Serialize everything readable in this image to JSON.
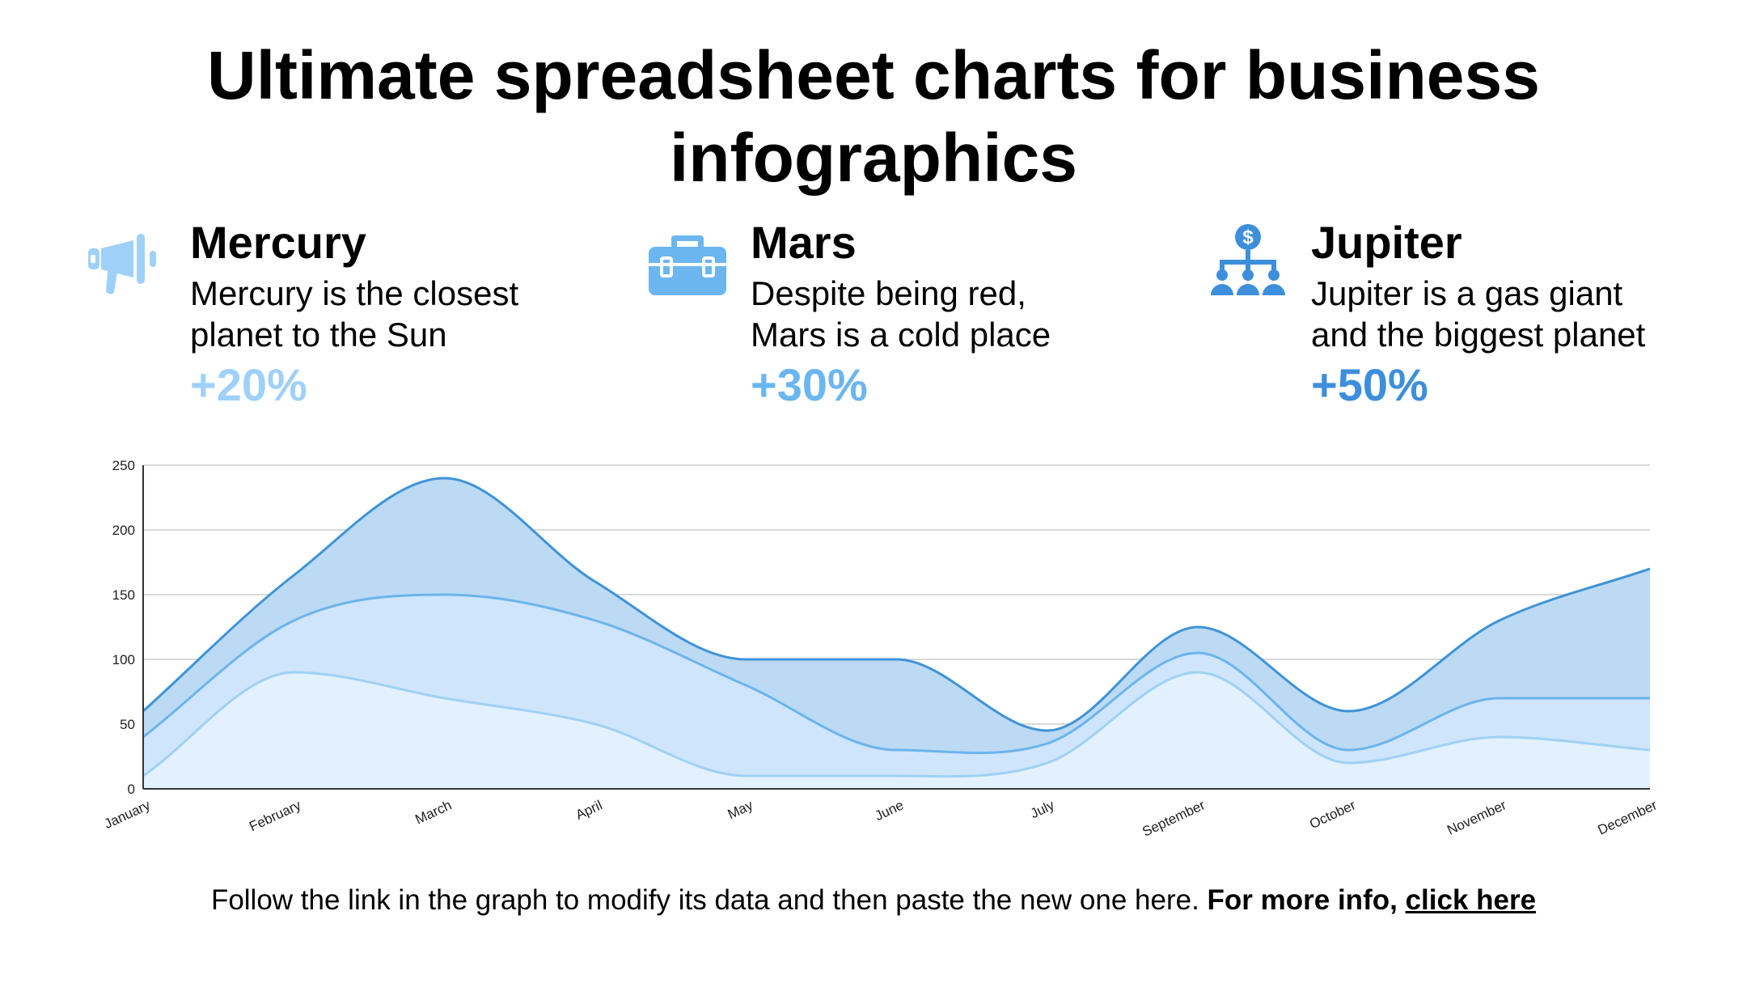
{
  "title_lines": [
    "Ultimate spreadsheet charts for business",
    "infographics"
  ],
  "cards": [
    {
      "id": "mercury",
      "name": "Mercury",
      "desc_lines": [
        "Mercury is the closest",
        "planet to the Sun"
      ],
      "percent": "+20%",
      "color": "#9fd1f8",
      "icon": "megaphone-icon"
    },
    {
      "id": "mars",
      "name": "Mars",
      "desc_lines": [
        "Despite being red,",
        "Mars is a cold place"
      ],
      "percent": "+30%",
      "color": "#6bb6ef",
      "icon": "briefcase-icon"
    },
    {
      "id": "jupiter",
      "name": "Jupiter",
      "desc_lines": [
        "Jupiter is a gas giant",
        "and the biggest planet"
      ],
      "percent": "+50%",
      "color": "#3d8fdb",
      "icon": "organization-dollar-icon"
    }
  ],
  "chart_data": {
    "type": "area",
    "categories": [
      "January",
      "February",
      "March",
      "April",
      "May",
      "June",
      "July",
      "September",
      "October",
      "November",
      "December"
    ],
    "series": [
      {
        "values": [
          60,
          165,
          240,
          160,
          100,
          100,
          45,
          125,
          60,
          130,
          170
        ],
        "fill": "#bcdaf4",
        "stroke": "#3f93d6"
      },
      {
        "values": [
          40,
          130,
          150,
          130,
          80,
          30,
          35,
          105,
          30,
          70,
          70
        ],
        "fill": "#cfe5fb",
        "stroke": "#6cb4ec"
      },
      {
        "values": [
          10,
          90,
          70,
          50,
          10,
          10,
          20,
          90,
          20,
          40,
          30
        ],
        "fill": "#e2f1fd",
        "stroke": "#9fd1f5"
      }
    ],
    "yticks": [
      "0",
      "50",
      "100",
      "150",
      "200",
      "250"
    ],
    "ylim": [
      0,
      250
    ],
    "grid": true,
    "legend": "none"
  },
  "footer": {
    "text": "Follow the link in the graph to modify its data and then paste the new one here.",
    "bold": "For more info,",
    "link": "click here"
  }
}
